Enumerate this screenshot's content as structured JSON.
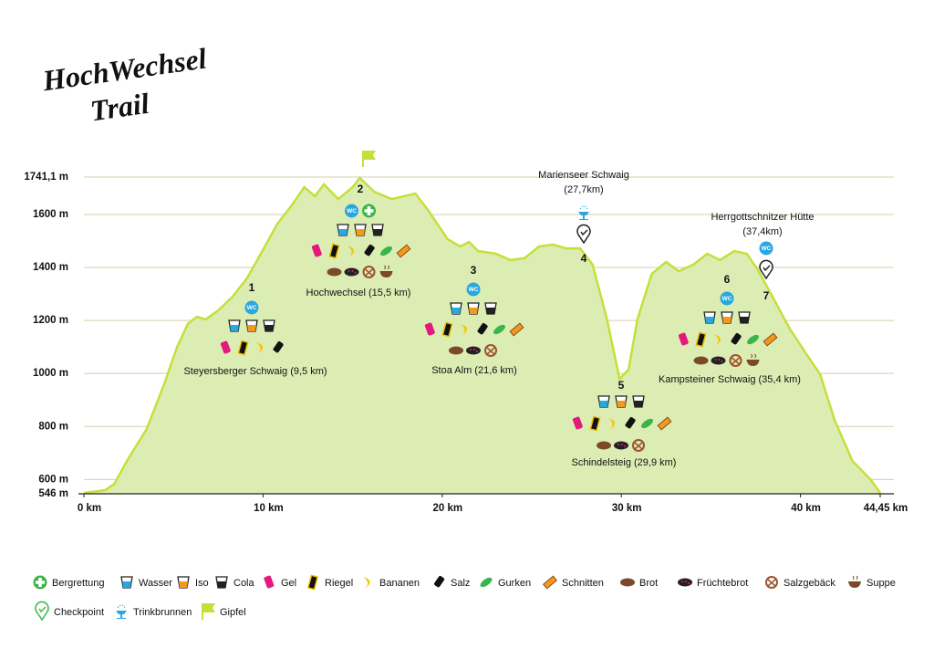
{
  "logo": [
    "HochWechsel",
    "Trail"
  ],
  "wc_label": "WC",
  "chart_data": {
    "type": "area",
    "x": [
      0,
      1.2,
      1.7,
      2.4,
      3.5,
      4.5,
      5.2,
      5.8,
      6.3,
      6.8,
      7.5,
      8.3,
      9.1,
      10.1,
      10.8,
      11.6,
      12.3,
      12.9,
      13.4,
      14.2,
      15,
      15.4,
      16.2,
      17.2,
      18.5,
      19.2,
      20.3,
      21,
      21.5,
      22,
      23,
      23.8,
      24.6,
      25.4,
      26.2,
      26.9,
      27.7,
      28.4,
      29.2,
      29.9,
      30.4,
      30.9,
      31.7,
      32.5,
      33.2,
      34,
      34.8,
      35.5,
      36.3,
      37,
      37.6,
      38.3,
      39.4,
      40.4,
      41.1,
      41.9,
      42.9,
      43.9,
      44.45
    ],
    "values": [
      549,
      560,
      584,
      670,
      790,
      963,
      1100,
      1187,
      1214,
      1204,
      1238,
      1290,
      1359,
      1479,
      1565,
      1634,
      1703,
      1669,
      1714,
      1658,
      1703,
      1738,
      1686,
      1658,
      1679,
      1617,
      1507,
      1479,
      1496,
      1462,
      1452,
      1428,
      1435,
      1479,
      1486,
      1472,
      1472,
      1410,
      1204,
      980,
      1014,
      1204,
      1376,
      1421,
      1386,
      1410,
      1452,
      1428,
      1462,
      1452,
      1393,
      1307,
      1169,
      1066,
      997,
      825,
      670,
      601,
      549
    ],
    "color": "#c5df3a",
    "fill": "#dcedb4",
    "xlim": [
      0,
      44.45
    ],
    "ylim": [
      546,
      1741.1
    ],
    "xticks": [
      {
        "value": 0,
        "label": "0 km"
      },
      {
        "value": 10,
        "label": "10 km"
      },
      {
        "value": 20,
        "label": "20 km"
      },
      {
        "value": 30,
        "label": "30 km"
      },
      {
        "value": 40,
        "label": "40 km"
      },
      {
        "value": 44.45,
        "label": "44,45 km"
      }
    ],
    "yticks": [
      {
        "value": 546,
        "label": "546 m"
      },
      {
        "value": 600,
        "label": "600 m"
      },
      {
        "value": 800,
        "label": "800 m"
      },
      {
        "value": 1000,
        "label": "1000 m"
      },
      {
        "value": 1200,
        "label": "1200 m"
      },
      {
        "value": 1400,
        "label": "1400 m"
      },
      {
        "value": 1600,
        "label": "1600 m"
      },
      {
        "value": 1741.1,
        "label": "1741,1 m"
      }
    ],
    "grid": true,
    "stations": [
      {
        "number": "1",
        "name": "Steyersberger Schwaig (9,5 km)"
      },
      {
        "number": "2",
        "name": "Hochwechsel (15,5 km)"
      },
      {
        "number": "3",
        "name": "Stoa Alm (21,6 km)"
      },
      {
        "number": "4",
        "name": ""
      },
      {
        "number": "5",
        "name": "Schindelsteig (29,9 km)"
      },
      {
        "number": "6",
        "name": "Kampsteiner Schwaig (35,4 km)"
      },
      {
        "number": "7",
        "name": ""
      }
    ],
    "top_labels": [
      [
        "Marienseer Schwaig",
        "(27,7km)"
      ],
      [
        "Herrgottschnitzer Hütte",
        "(37,4km)"
      ]
    ]
  },
  "legend": [
    "Bergrettung",
    "Wasser",
    "Iso",
    "Cola",
    "Gel",
    "Riegel",
    "Bananen",
    "Salz",
    "Gurken",
    "Schnitten",
    "Brot",
    "Früchtebrot",
    "Salzgebäck",
    "Suppe",
    "Checkpoint",
    "Trinkbrunnen",
    "Gipfel"
  ]
}
